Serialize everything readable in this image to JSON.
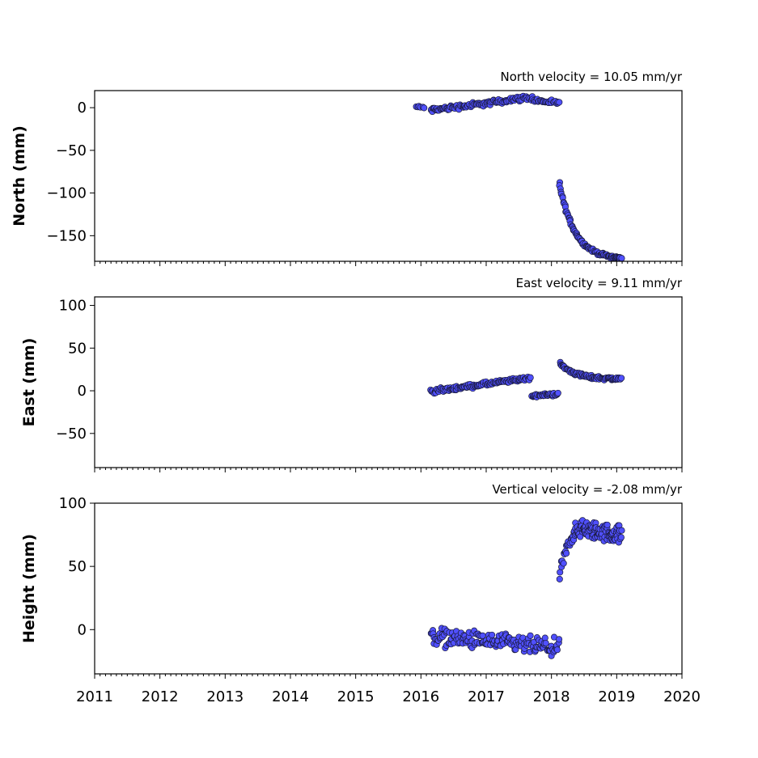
{
  "chart_data": [
    {
      "type": "scatter",
      "ylabel": "North (mm)",
      "annotation": "North velocity = 10.05 mm/yr",
      "xlim": [
        2011,
        2020
      ],
      "ylim": [
        -180,
        20
      ],
      "yticks": [
        0,
        -50,
        -100,
        -150
      ],
      "ytick_labels": [
        "0",
        "−50",
        "−100",
        "−150"
      ],
      "marker_color": "#5050ff",
      "segments": [
        {
          "x0": 2015.92,
          "x1": 2016.05,
          "y0": 1,
          "y1": 0,
          "curve": "linear",
          "noise": 1.2,
          "n": 6
        },
        {
          "x0": 2016.15,
          "x1": 2017.3,
          "y0": -3,
          "y1": 8,
          "curve": "linear",
          "noise": 2.5,
          "n": 90
        },
        {
          "x0": 2017.3,
          "x1": 2017.7,
          "y0": 9,
          "y1": 12,
          "curve": "linear",
          "noise": 2.5,
          "n": 32
        },
        {
          "x0": 2017.7,
          "x1": 2018.12,
          "y0": 9,
          "y1": 5,
          "curve": "linear",
          "noise": 2.0,
          "n": 28
        },
        {
          "x0": 2018.12,
          "x1": 2019.07,
          "y0": -88,
          "y1": -176,
          "curve": "decay",
          "noise": 1.5,
          "n": 100
        }
      ]
    },
    {
      "type": "scatter",
      "ylabel": "East (mm)",
      "annotation": "East velocity = 9.11 mm/yr",
      "xlim": [
        2011,
        2020
      ],
      "ylim": [
        -90,
        110
      ],
      "yticks": [
        100,
        50,
        0,
        -50
      ],
      "ytick_labels": [
        "100",
        "50",
        "0",
        "−50"
      ],
      "marker_color": "#5050ff",
      "segments": [
        {
          "x0": 2016.15,
          "x1": 2017.68,
          "y0": -1,
          "y1": 15,
          "curve": "linear",
          "noise": 2.0,
          "n": 130
        },
        {
          "x0": 2017.7,
          "x1": 2018.1,
          "y0": -6,
          "y1": -4,
          "curve": "linear",
          "noise": 1.5,
          "n": 36
        },
        {
          "x0": 2018.13,
          "x1": 2019.07,
          "y0": 32,
          "y1": 14,
          "curve": "decay",
          "noise": 1.8,
          "n": 90
        }
      ]
    },
    {
      "type": "scatter",
      "ylabel": "Height (mm)",
      "annotation": "Vertical velocity = -2.08 mm/yr",
      "xlim": [
        2011,
        2020
      ],
      "ylim": [
        -35,
        100
      ],
      "yticks": [
        100,
        50,
        0
      ],
      "ytick_labels": [
        "100",
        "50",
        "0"
      ],
      "xticks": [
        2011,
        2012,
        2013,
        2014,
        2015,
        2016,
        2017,
        2018,
        2019,
        2020
      ],
      "xtick_labels": [
        "2011",
        "2012",
        "2013",
        "2014",
        "2015",
        "2016",
        "2017",
        "2018",
        "2019",
        "2020"
      ],
      "marker_color": "#5050ff",
      "segments": [
        {
          "x0": 2016.15,
          "x1": 2018.12,
          "y0": -5,
          "y1": -15,
          "curve": "linear",
          "noise": 6.0,
          "n": 170
        },
        {
          "x0": 2018.13,
          "x1": 2018.35,
          "y0": 38,
          "y1": 75,
          "curve": "rise",
          "noise": 4.0,
          "n": 24
        },
        {
          "x0": 2018.35,
          "x1": 2019.07,
          "y0": 80,
          "y1": 75,
          "curve": "linear",
          "noise": 6.0,
          "n": 110
        }
      ]
    }
  ]
}
